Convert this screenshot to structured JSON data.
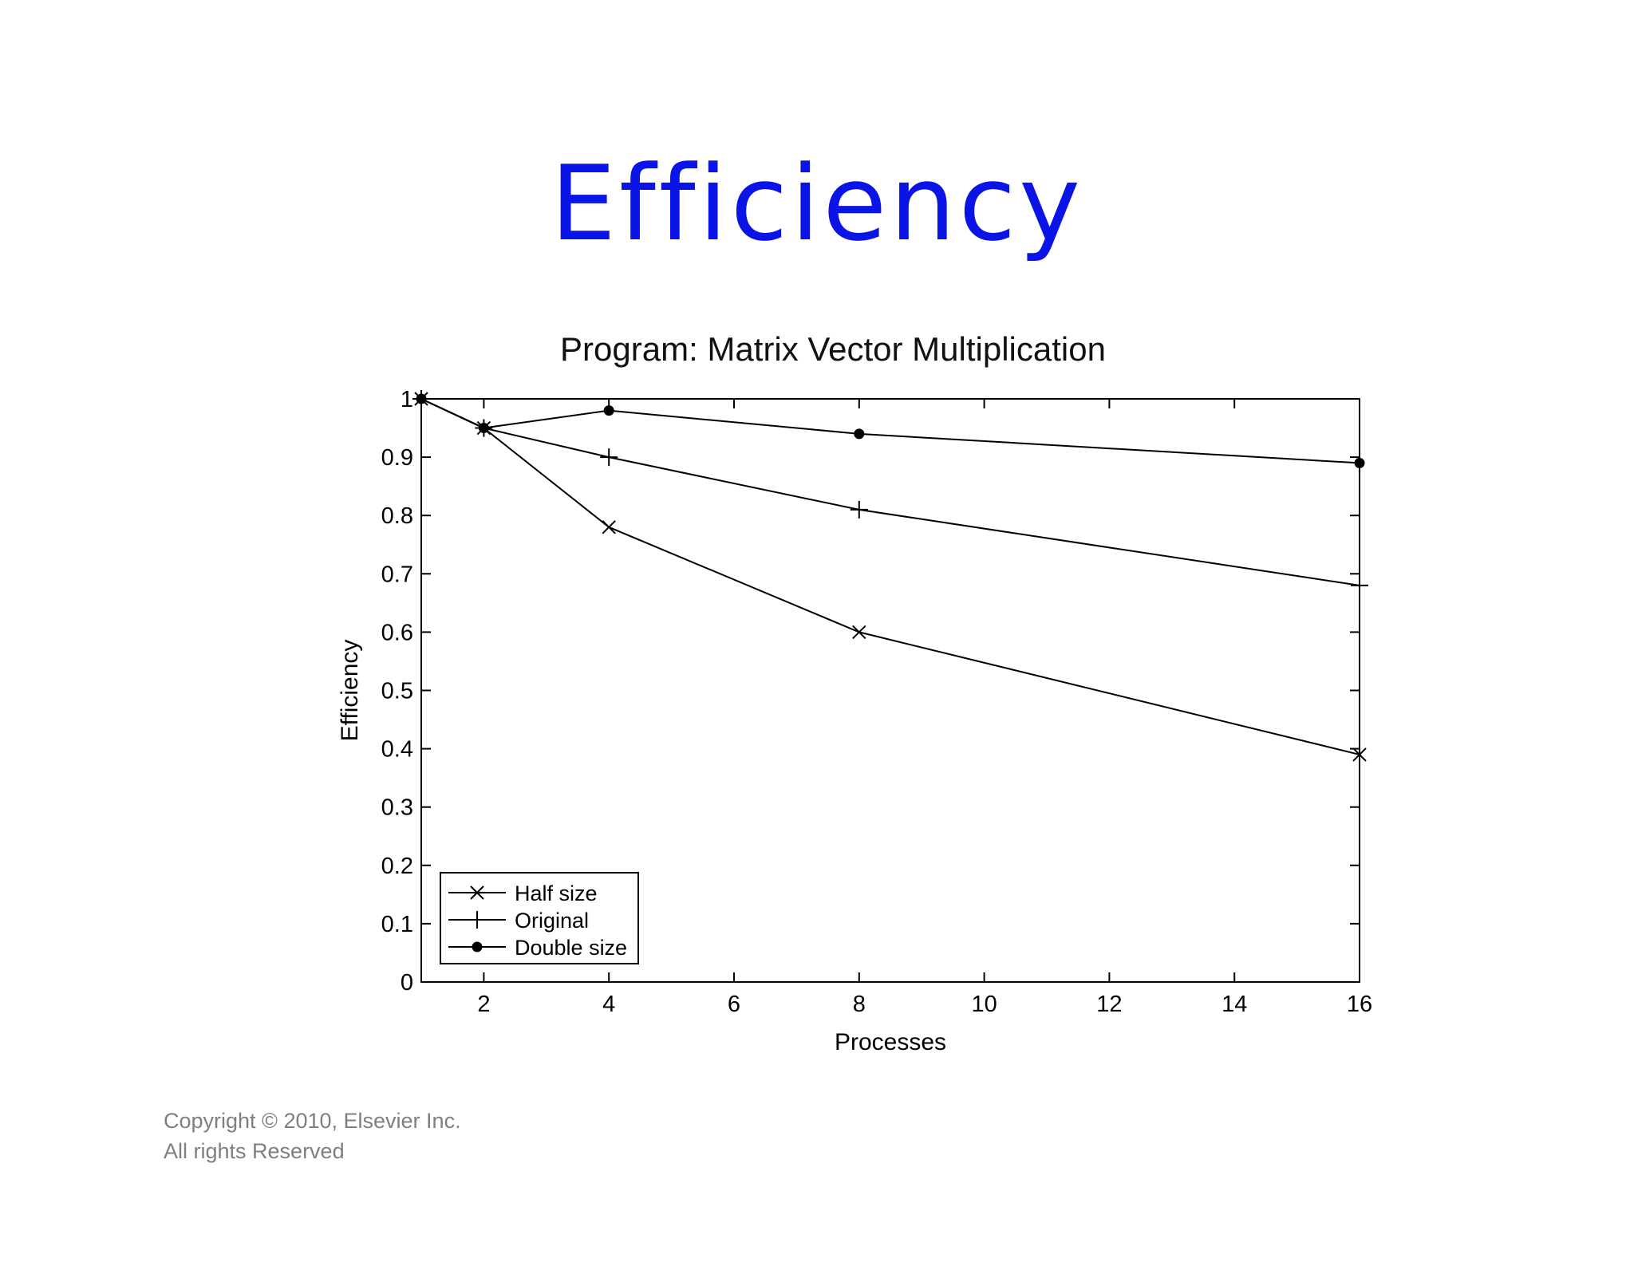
{
  "slide": {
    "title": "Efficiency"
  },
  "footer": {
    "line1": "Copyright © 2010, Elsevier Inc.",
    "line2": "All rights Reserved"
  },
  "colors": {
    "title": "#0b14e6",
    "ink": "#000000",
    "footer": "#7f7f7f"
  },
  "chart_data": {
    "type": "line",
    "title": "Program: Matrix Vector Multiplication",
    "xlabel": "Processes",
    "ylabel": "Efficiency",
    "xlim": [
      1,
      16
    ],
    "ylim": [
      0,
      1
    ],
    "xticks": [
      2,
      4,
      6,
      8,
      10,
      12,
      14,
      16
    ],
    "yticks": [
      0,
      0.1,
      0.2,
      0.3,
      0.4,
      0.5,
      0.6,
      0.7,
      0.8,
      0.9,
      1
    ],
    "grid": false,
    "legend_position": "bottom-left",
    "x": [
      1,
      2,
      4,
      8,
      16
    ],
    "series": [
      {
        "name": "Half size",
        "marker": "x",
        "values": [
          1.0,
          0.95,
          0.78,
          0.6,
          0.39
        ]
      },
      {
        "name": "Original",
        "marker": "plus",
        "values": [
          1.0,
          0.95,
          0.9,
          0.81,
          0.68
        ]
      },
      {
        "name": "Double size",
        "marker": "dot",
        "values": [
          1.0,
          0.95,
          0.98,
          0.94,
          0.89
        ]
      }
    ]
  }
}
